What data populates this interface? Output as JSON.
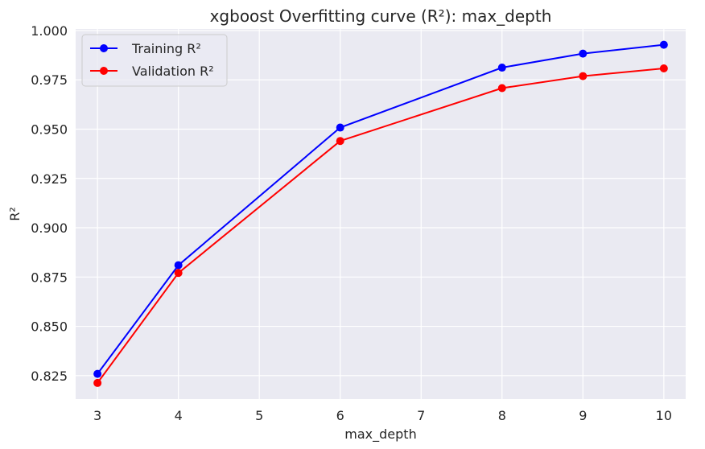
{
  "chart_data": {
    "type": "line",
    "title": "xgboost Overfitting curve (R²): max_depth",
    "xlabel": "max_depth",
    "ylabel": "R²",
    "xlim": [
      2.73,
      10.27
    ],
    "ylim": [
      0.8131,
      1.0008
    ],
    "x_ticks": [
      3,
      4,
      5,
      6,
      7,
      8,
      9,
      10
    ],
    "y_ticks": [
      0.825,
      0.85,
      0.875,
      0.9,
      0.925,
      0.95,
      0.975,
      1.0
    ],
    "y_tick_labels": [
      "0.825",
      "0.850",
      "0.875",
      "0.900",
      "0.925",
      "0.950",
      "0.975",
      "1.000"
    ],
    "grid": true,
    "legend_position": "top-left",
    "x": [
      3,
      4,
      6,
      8,
      9,
      10
    ],
    "series": [
      {
        "name": "Training R²",
        "color": "#0000ff",
        "values": [
          0.8259,
          0.881,
          0.9508,
          0.9812,
          0.9883,
          0.9928
        ]
      },
      {
        "name": "Validation R²",
        "color": "#ff0000",
        "values": [
          0.8213,
          0.8771,
          0.944,
          0.9708,
          0.9769,
          0.9808
        ]
      }
    ]
  }
}
